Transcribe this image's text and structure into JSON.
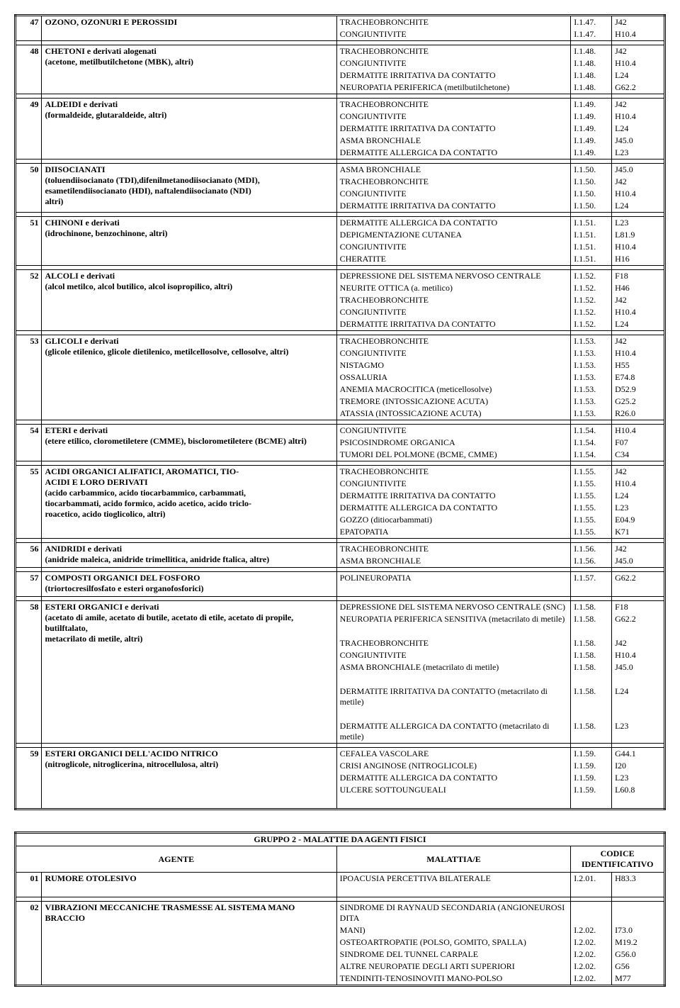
{
  "table1": {
    "groups": [
      {
        "num": "47",
        "agent_lines": [
          "OZONO, OZONURI E PEROSSIDI"
        ],
        "rows": [
          {
            "disease": "TRACHEOBRONCHITE",
            "c1": "I.1.47.",
            "c2": "J42"
          },
          {
            "disease": "CONGIUNTIVITE",
            "c1": "I.1.47.",
            "c2": "H10.4"
          }
        ]
      },
      {
        "num": "48",
        "agent_lines": [
          "CHETONI e derivati alogenati",
          "(acetone, metilbutilchetone (MBK), altri)"
        ],
        "rows": [
          {
            "disease": "TRACHEOBRONCHITE",
            "c1": "I.1.48.",
            "c2": "J42"
          },
          {
            "disease": "CONGIUNTIVITE",
            "c1": "I.1.48.",
            "c2": "H10.4"
          },
          {
            "disease": "DERMATITE IRRITATIVA DA CONTATTO",
            "c1": "I.1.48.",
            "c2": "L24"
          },
          {
            "disease": "NEUROPATIA PERIFERICA (metilbutilchetone)",
            "c1": "I.1.48.",
            "c2": "G62.2"
          }
        ]
      },
      {
        "num": "49",
        "agent_lines": [
          "ALDEIDI e derivati",
          "(formaldeide, glutaraldeide, altri)"
        ],
        "rows": [
          {
            "disease": "TRACHEOBRONCHITE",
            "c1": "I.1.49.",
            "c2": "J42"
          },
          {
            "disease": "CONGIUNTIVITE",
            "c1": "I.1.49.",
            "c2": "H10.4"
          },
          {
            "disease": "DERMATITE IRRITATIVA DA CONTATTO",
            "c1": "I.1.49.",
            "c2": "L24"
          },
          {
            "disease": "ASMA BRONCHIALE",
            "c1": "I.1.49.",
            "c2": "J45.0"
          },
          {
            "disease": "DERMATITE ALLERGICA DA CONTATTO",
            "c1": "I.1.49.",
            "c2": "L23"
          }
        ]
      },
      {
        "num": "50",
        "agent_lines": [
          "DIISOCIANATI",
          "(toluendiisocianato (TDI),difenilmetanodiisocianato (MDI),",
          "esametilendiisocianato (HDI), naftalendiisocianato (NDI)",
          "altri)"
        ],
        "rows": [
          {
            "disease": "ASMA BRONCHIALE",
            "c1": "I.1.50.",
            "c2": "J45.0"
          },
          {
            "disease": "TRACHEOBRONCHITE",
            "c1": "I.1.50.",
            "c2": "J42"
          },
          {
            "disease": "CONGIUNTIVITE",
            "c1": "I.1.50.",
            "c2": "H10.4"
          },
          {
            "disease": "DERMATITE IRRITATIVA DA CONTATTO",
            "c1": "I.1.50.",
            "c2": "L24"
          }
        ]
      },
      {
        "num": "51",
        "agent_lines": [
          "CHINONI e derivati",
          "(idrochinone, benzochinone, altri)"
        ],
        "rows": [
          {
            "disease": "DERMATITE ALLERGICA DA CONTATTO",
            "c1": "I.1.51.",
            "c2": "L23"
          },
          {
            "disease": "DEPIGMENTAZIONE CUTANEA",
            "c1": "I.1.51.",
            "c2": "L81.9"
          },
          {
            "disease": "CONGIUNTIVITE",
            "c1": "I.1.51.",
            "c2": "H10.4"
          },
          {
            "disease": "CHERATITE",
            "c1": "I.1.51.",
            "c2": "H16"
          }
        ]
      },
      {
        "num": "52",
        "agent_lines": [
          "ALCOLI e derivati",
          "(alcol metilco, alcol butilico, alcol isopropilico, altri)"
        ],
        "rows": [
          {
            "disease": "DEPRESSIONE DEL SISTEMA NERVOSO CENTRALE",
            "c1": "I.1.52.",
            "c2": "F18"
          },
          {
            "disease": "NEURITE OTTICA (a. metilico)",
            "c1": "I.1.52.",
            "c2": "H46"
          },
          {
            "disease": "TRACHEOBRONCHITE",
            "c1": "I.1.52.",
            "c2": "J42"
          },
          {
            "disease": "CONGIUNTIVITE",
            "c1": "I.1.52.",
            "c2": "H10.4"
          },
          {
            "disease": "DERMATITE IRRITATIVA DA CONTATTO",
            "c1": "I.1.52.",
            "c2": "L24"
          }
        ]
      },
      {
        "num": "53",
        "agent_lines": [
          "GLICOLI e derivati",
          "(glicole etilenico, glicole dietilenico, metilcellosolve, cellosolve, altri)"
        ],
        "rows": [
          {
            "disease": "TRACHEOBRONCHITE",
            "c1": "I.1.53.",
            "c2": "J42"
          },
          {
            "disease": "CONGIUNTIVITE",
            "c1": "I.1.53.",
            "c2": "H10.4"
          },
          {
            "disease": "NISTAGMO",
            "c1": "I.1.53.",
            "c2": "H55"
          },
          {
            "disease": "OSSALURIA",
            "c1": "I.1.53.",
            "c2": "E74.8"
          },
          {
            "disease": "ANEMIA MACROCITICA (meticellosolve)",
            "c1": "I.1.53.",
            "c2": "D52.9"
          },
          {
            "disease": "TREMORE (INTOSSICAZIONE ACUTA)",
            "c1": "I.1.53.",
            "c2": "G25.2"
          },
          {
            "disease": "ATASSIA (INTOSSICAZIONE ACUTA)",
            "c1": "I.1.53.",
            "c2": "R26.0"
          }
        ]
      },
      {
        "num": "54",
        "agent_lines": [
          "ETERI e derivati",
          "(etere etilico, clorometiletere (CMME), bisclorometiletere (BCME) altri)"
        ],
        "rows": [
          {
            "disease": "CONGIUNTIVITE",
            "c1": "I.1.54.",
            "c2": "H10.4"
          },
          {
            "disease": "PSICOSINDROME ORGANICA",
            "c1": "I.1.54.",
            "c2": "F07"
          },
          {
            "disease": "TUMORI DEL POLMONE (BCME, CMME)",
            "c1": "I.1.54.",
            "c2": "C34"
          }
        ]
      },
      {
        "num": "55",
        "agent_lines": [
          "ACIDI ORGANICI ALIFATICI, AROMATICI, TIO-",
          "ACIDI E LORO DERIVATI",
          "(acido carbammico, acido tiocarbammico, carbammati,",
          "tiocarbammati, acido formico, acido acetico, acido triclo-",
          "roacetico, acido tioglicolico, altri)"
        ],
        "rows": [
          {
            "disease": "TRACHEOBRONCHITE",
            "c1": "I.1.55.",
            "c2": "J42"
          },
          {
            "disease": "CONGIUNTIVITE",
            "c1": "I.1.55.",
            "c2": "H10.4"
          },
          {
            "disease": "DERMATITE IRRITATIVA DA CONTATTO",
            "c1": "I.1.55.",
            "c2": "L24"
          },
          {
            "disease": "DERMATITE ALLERGICA DA CONTATTO",
            "c1": "I.1.55.",
            "c2": "L23"
          },
          {
            "disease": "GOZZO (ditiocarbammati)",
            "c1": "I.1.55.",
            "c2": "E04.9"
          },
          {
            "disease": "EPATOPATIA",
            "c1": "I.1.55.",
            "c2": "K71"
          }
        ]
      },
      {
        "num": "56",
        "agent_lines": [
          "ANIDRIDI e derivati",
          "(anidride maleica, anidride trimellitica, anidride ftalica, altre)"
        ],
        "rows": [
          {
            "disease": "TRACHEOBRONCHITE",
            "c1": "I.1.56.",
            "c2": "J42"
          },
          {
            "disease": "ASMA BRONCHIALE",
            "c1": "I.1.56.",
            "c2": "J45.0"
          }
        ]
      },
      {
        "num": "57",
        "agent_lines": [
          "COMPOSTI ORGANICI DEL FOSFORO",
          "(triortocresilfosfato e esteri organofosforici)"
        ],
        "rows": [
          {
            "disease": "POLINEUROPATIA",
            "c1": "I.1.57.",
            "c2": "G62.2"
          },
          {
            "disease": "",
            "c1": "",
            "c2": ""
          }
        ]
      },
      {
        "num": "58",
        "agent_lines": [
          "ESTERI ORGANICI e derivati",
          "(acetato di amile, acetato di butile, acetato di etile, acetato di propile, butilftalato,",
          "metacrilato di metile, altri)"
        ],
        "rows": [
          {
            "disease": "DEPRESSIONE DEL SISTEMA NERVOSO CENTRALE (SNC)",
            "c1": "I.1.58.",
            "c2": "F18"
          },
          {
            "disease": "NEUROPATIA PERIFERICA SENSITIVA (metacrilato di metile)",
            "c1": "I.1.58.",
            "c2": "G62.2"
          },
          {
            "disease": "",
            "c1": "",
            "c2": ""
          },
          {
            "disease": "TRACHEOBRONCHITE",
            "c1": "I.1.58.",
            "c2": "J42"
          },
          {
            "disease": "CONGIUNTIVITE",
            "c1": "I.1.58.",
            "c2": "H10.4"
          },
          {
            "disease": "ASMA BRONCHIALE (metacrilato di metile)",
            "c1": "I.1.58.",
            "c2": "J45.0"
          },
          {
            "disease": "",
            "c1": "",
            "c2": ""
          },
          {
            "disease": "DERMATITE IRRITATIVA DA CONTATTO (metacrilato di metile)",
            "c1": "I.1.58.",
            "c2": "L24"
          },
          {
            "disease": "",
            "c1": "",
            "c2": ""
          },
          {
            "disease": "DERMATITE ALLERGICA DA CONTATTO (metacrilato di metile)",
            "c1": "I.1.58.",
            "c2": "L23"
          }
        ]
      },
      {
        "num": "59",
        "agent_lines": [
          "ESTERI ORGANICI DELL'ACIDO NITRICO",
          "(nitroglicole, nitroglicerina, nitrocellulosa, altri)"
        ],
        "rows": [
          {
            "disease": "CEFALEA VASCOLARE",
            "c1": "I.1.59.",
            "c2": "G44.1"
          },
          {
            "disease": "CRISI ANGINOSE (NITROGLICOLE)",
            "c1": "I.1.59.",
            "c2": "I20"
          },
          {
            "disease": "DERMATITE ALLERGICA DA CONTATTO",
            "c1": "I.1.59.",
            "c2": "L23"
          },
          {
            "disease": "ULCERE SOTTOUNGUEALI",
            "c1": "I.1.59.",
            "c2": "L60.8"
          },
          {
            "disease": "",
            "c1": "",
            "c2": ""
          }
        ]
      }
    ]
  },
  "table2": {
    "title": "GRUPPO 2 - MALATTIE DA AGENTI FISICI",
    "headers": {
      "agent": "AGENTE",
      "disease": "MALATTIA/E",
      "code": "CODICE IDENTIFICATIVO"
    },
    "groups": [
      {
        "num": "01",
        "agent_lines": [
          "RUMORE OTOLESIVO"
        ],
        "rows": [
          {
            "disease": "IPOACUSIA PERCETTIVA BILATERALE",
            "c1": "I.2.01.",
            "c2": "H83.3"
          },
          {
            "disease": "",
            "c1": "",
            "c2": ""
          }
        ]
      },
      {
        "num": "02",
        "agent_lines": [
          "VIBRAZIONI MECCANICHE TRASMESSE AL SISTEMA MANO BRACCIO"
        ],
        "rows": [
          {
            "disease": "SINDROME DI RAYNAUD SECONDARIA (ANGIONEUROSI DITA",
            "c1": "",
            "c2": ""
          },
          {
            "disease": "MANI)",
            "c1": "I.2.02.",
            "c2": "I73.0"
          },
          {
            "disease": "OSTEOARTROPATIE (POLSO, GOMITO, SPALLA)",
            "c1": "I.2.02.",
            "c2": "M19.2"
          },
          {
            "disease": "SINDROME DEL TUNNEL CARPALE",
            "c1": "I.2.02.",
            "c2": "G56.0"
          },
          {
            "disease": "ALTRE NEUROPATIE DEGLI ARTI SUPERIORI",
            "c1": "I.2.02.",
            "c2": "G56"
          },
          {
            "disease": "TENDINITI-TENOSINOVITI MANO-POLSO",
            "c1": "I.2.02.",
            "c2": "M77"
          }
        ]
      }
    ]
  }
}
